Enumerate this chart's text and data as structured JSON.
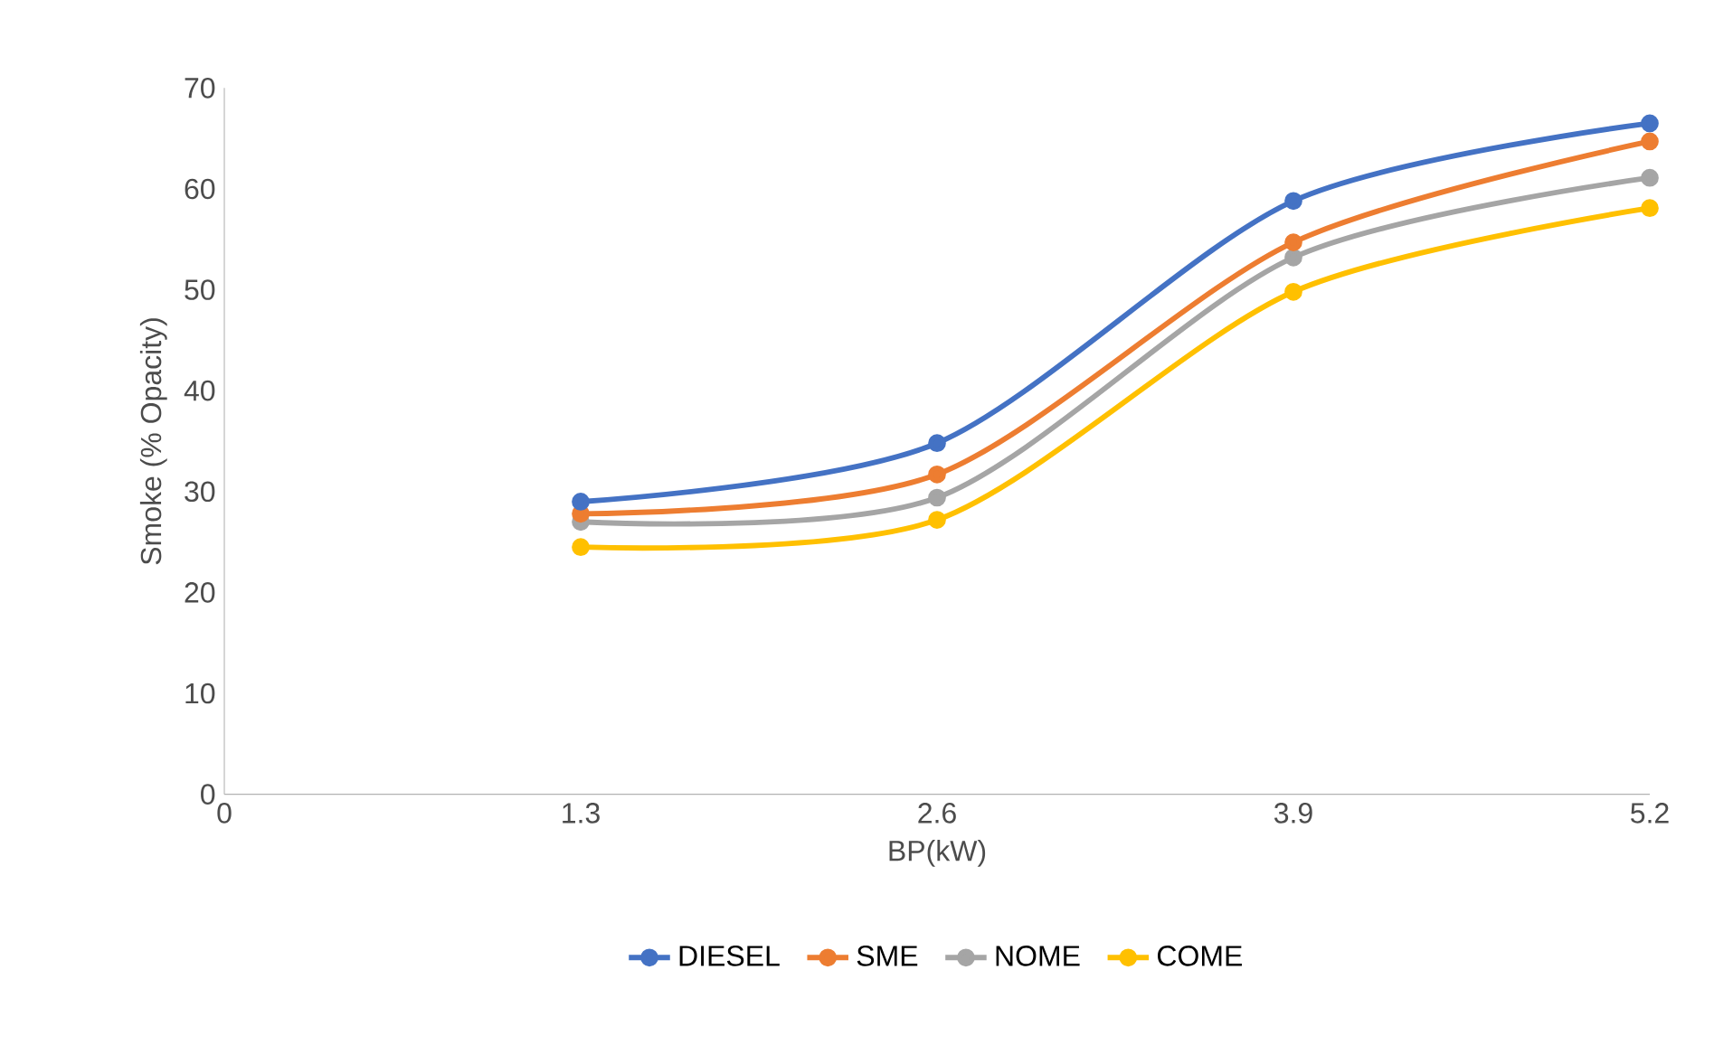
{
  "chart_data": {
    "type": "line",
    "xlabel": "BP(kW)",
    "ylabel": "Smoke (% Opacity)",
    "xlim": [
      0,
      5.2
    ],
    "xticks": [
      0,
      1.3,
      2.6,
      3.9,
      5.2
    ],
    "ylim": [
      0,
      70
    ],
    "yticks": [
      0,
      10,
      20,
      30,
      40,
      50,
      60,
      70
    ],
    "x": [
      1.3,
      2.6,
      3.9,
      5.2
    ],
    "grid": false,
    "legend": "bottom",
    "marker": "circle",
    "line_style": "solid",
    "series": [
      {
        "name": "DIESEL",
        "color": "#4472c4",
        "values": [
          29.0,
          34.8,
          58.8,
          66.5
        ]
      },
      {
        "name": "SME",
        "color": "#ed7d31",
        "values": [
          27.8,
          31.7,
          54.7,
          64.7
        ]
      },
      {
        "name": "NOME",
        "color": "#a5a5a5",
        "values": [
          27.0,
          29.4,
          53.2,
          61.1
        ]
      },
      {
        "name": "COME",
        "color": "#ffc000",
        "values": [
          24.5,
          27.2,
          49.8,
          58.1
        ]
      }
    ]
  }
}
